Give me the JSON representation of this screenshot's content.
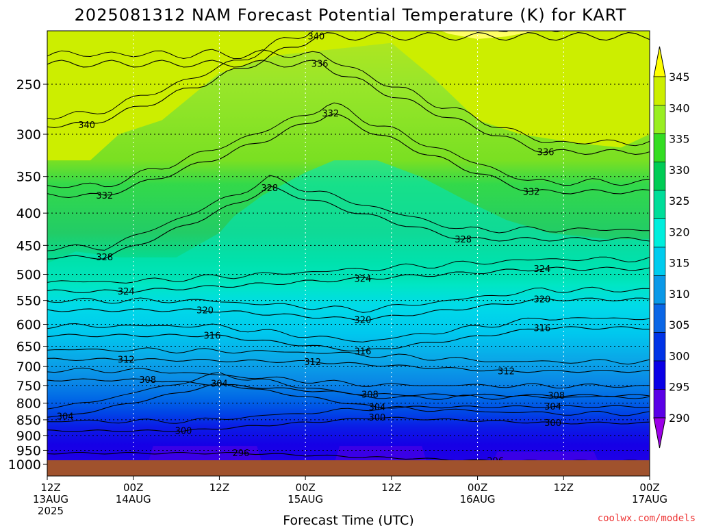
{
  "title": "2025081312 NAM Forecast Potential Temperature (K) for KART",
  "xlabel": "Forecast Time (UTC)",
  "watermark": "coolwx.com/models",
  "chart_data": {
    "type": "heatmap",
    "title": "2025081312 NAM Forecast Potential Temperature (K) for KART",
    "xlabel": "Forecast Time (UTC)",
    "ylabel": "",
    "x_ticks": [
      {
        "hour": 0,
        "lines": [
          "12Z",
          "13AUG",
          "2025"
        ]
      },
      {
        "hour": 12,
        "lines": [
          "00Z",
          "14AUG"
        ]
      },
      {
        "hour": 24,
        "lines": [
          "12Z"
        ]
      },
      {
        "hour": 36,
        "lines": [
          "00Z",
          "15AUG"
        ]
      },
      {
        "hour": 48,
        "lines": [
          "12Z"
        ]
      },
      {
        "hour": 60,
        "lines": [
          "00Z",
          "16AUG"
        ]
      },
      {
        "hour": 72,
        "lines": [
          "12Z"
        ]
      },
      {
        "hour": 84,
        "lines": [
          "00Z",
          "17AUG"
        ]
      }
    ],
    "y_ticks": [
      250,
      300,
      350,
      400,
      450,
      500,
      550,
      600,
      650,
      700,
      750,
      800,
      850,
      900,
      950,
      1000
    ],
    "y_gridlines": [
      250,
      300,
      350,
      400,
      450,
      500,
      550,
      600,
      650,
      700,
      750,
      800,
      850,
      900,
      950
    ],
    "ylim": [
      1000,
      200
    ],
    "y_scale": "log",
    "y_reversed": true,
    "x_range_hours": [
      0,
      84
    ],
    "grid": true,
    "colorbar": {
      "position": "right",
      "labels": [
        290,
        295,
        300,
        305,
        310,
        315,
        320,
        325,
        330,
        335,
        340,
        345
      ],
      "colors": [
        "#9c00e8",
        "#5a00e6",
        "#0a00e6",
        "#0033e6",
        "#0a66e6",
        "#0a99e8",
        "#00ccee",
        "#00eedd",
        "#00dd99",
        "#00cc55",
        "#33dd22",
        "#99ee22",
        "#ccee00",
        "#ffff00"
      ],
      "extend": "both"
    },
    "contour_interval": 2,
    "contour_labels": [
      {
        "value": 340,
        "hour": 37.5,
        "p": 210
      },
      {
        "value": 340,
        "hour": 5.5,
        "p": 290
      },
      {
        "value": 336,
        "hour": 38.0,
        "p": 232
      },
      {
        "value": 336,
        "hour": 69.5,
        "p": 320
      },
      {
        "value": 332,
        "hour": 39.5,
        "p": 278
      },
      {
        "value": 332,
        "hour": 8.0,
        "p": 375
      },
      {
        "value": 332,
        "hour": 67.5,
        "p": 370
      },
      {
        "value": 328,
        "hour": 31.0,
        "p": 365
      },
      {
        "value": 328,
        "hour": 8.0,
        "p": 470
      },
      {
        "value": 328,
        "hour": 58.0,
        "p": 440
      },
      {
        "value": 324,
        "hour": 11.0,
        "p": 532
      },
      {
        "value": 324,
        "hour": 44.0,
        "p": 508
      },
      {
        "value": 324,
        "hour": 69.0,
        "p": 490
      },
      {
        "value": 320,
        "hour": 22.0,
        "p": 570
      },
      {
        "value": 320,
        "hour": 44.0,
        "p": 590
      },
      {
        "value": 320,
        "hour": 69.0,
        "p": 548
      },
      {
        "value": 316,
        "hour": 23.0,
        "p": 625
      },
      {
        "value": 316,
        "hour": 44.0,
        "p": 662
      },
      {
        "value": 316,
        "hour": 69.0,
        "p": 608
      },
      {
        "value": 312,
        "hour": 11.0,
        "p": 682
      },
      {
        "value": 312,
        "hour": 37.0,
        "p": 688
      },
      {
        "value": 312,
        "hour": 64.0,
        "p": 712
      },
      {
        "value": 308,
        "hour": 14.0,
        "p": 735
      },
      {
        "value": 308,
        "hour": 45.0,
        "p": 775
      },
      {
        "value": 308,
        "hour": 71.0,
        "p": 778
      },
      {
        "value": 304,
        "hour": 24.0,
        "p": 745
      },
      {
        "value": 304,
        "hour": 2.5,
        "p": 840
      },
      {
        "value": 304,
        "hour": 46.0,
        "p": 812
      },
      {
        "value": 304,
        "hour": 70.5,
        "p": 810
      },
      {
        "value": 300,
        "hour": 19.0,
        "p": 885
      },
      {
        "value": 300,
        "hour": 46.0,
        "p": 843
      },
      {
        "value": 300,
        "hour": 70.5,
        "p": 860
      },
      {
        "value": 296,
        "hour": 27.0,
        "p": 960
      },
      {
        "value": 296,
        "hour": 62.5,
        "p": 988
      }
    ],
    "ground_color": "#a0522d"
  }
}
